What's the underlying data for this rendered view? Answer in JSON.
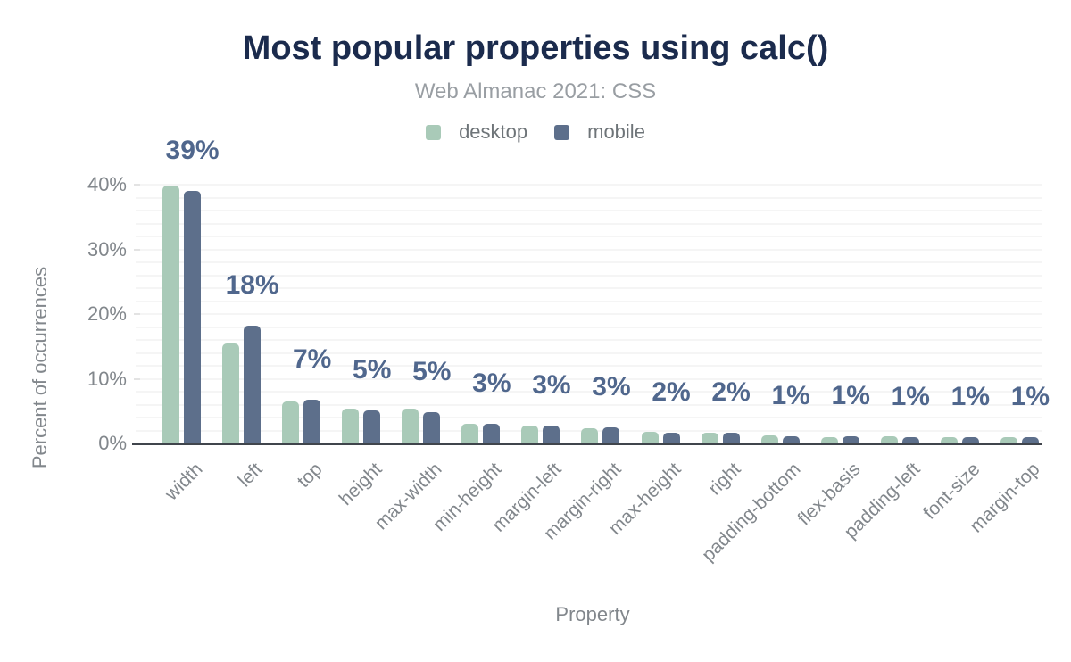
{
  "chart_data": {
    "type": "bar",
    "title": "Most popular properties using calc()",
    "subtitle": "Web Almanac 2021: CSS",
    "xlabel": "Property",
    "ylabel": "Percent of occurrences",
    "ylim": [
      0,
      40
    ],
    "y_ticks": [
      {
        "value": 0,
        "label": "0%"
      },
      {
        "value": 10,
        "label": "10%"
      },
      {
        "value": 20,
        "label": "20%"
      },
      {
        "value": 30,
        "label": "30%"
      },
      {
        "value": 40,
        "label": "40%"
      }
    ],
    "grid": {
      "show": true,
      "minor_step": 2
    },
    "legend_position": "top",
    "categories": [
      "width",
      "left",
      "top",
      "height",
      "max-width",
      "min-height",
      "margin-left",
      "margin-right",
      "max-height",
      "right",
      "padding-bottom",
      "flex-basis",
      "padding-left",
      "font-size",
      "margin-top"
    ],
    "series": [
      {
        "name": "desktop",
        "color": "#a9cab8",
        "values": [
          39.8,
          15.4,
          6.5,
          5.4,
          5.4,
          3.0,
          2.7,
          2.4,
          1.8,
          1.6,
          1.3,
          1.0,
          1.1,
          0.9,
          0.9
        ]
      },
      {
        "name": "mobile",
        "color": "#5d6f8b",
        "values": [
          39.0,
          18.2,
          6.8,
          5.1,
          4.8,
          3.0,
          2.7,
          2.5,
          1.7,
          1.6,
          1.1,
          1.1,
          0.9,
          0.9,
          1.0
        ]
      }
    ],
    "bar_labels": [
      "39%",
      "18%",
      "7%",
      "5%",
      "5%",
      "3%",
      "3%",
      "3%",
      "2%",
      "2%",
      "1%",
      "1%",
      "1%",
      "1%",
      "1%"
    ],
    "colors": {
      "title": "#1b2b4d",
      "subtitle": "#999ea3",
      "legend_text": "#6e7478",
      "axis_text": "#82878c",
      "axis_line": "#40454c",
      "gridline": "#f5f5f5",
      "data_label": "#50678d"
    }
  }
}
